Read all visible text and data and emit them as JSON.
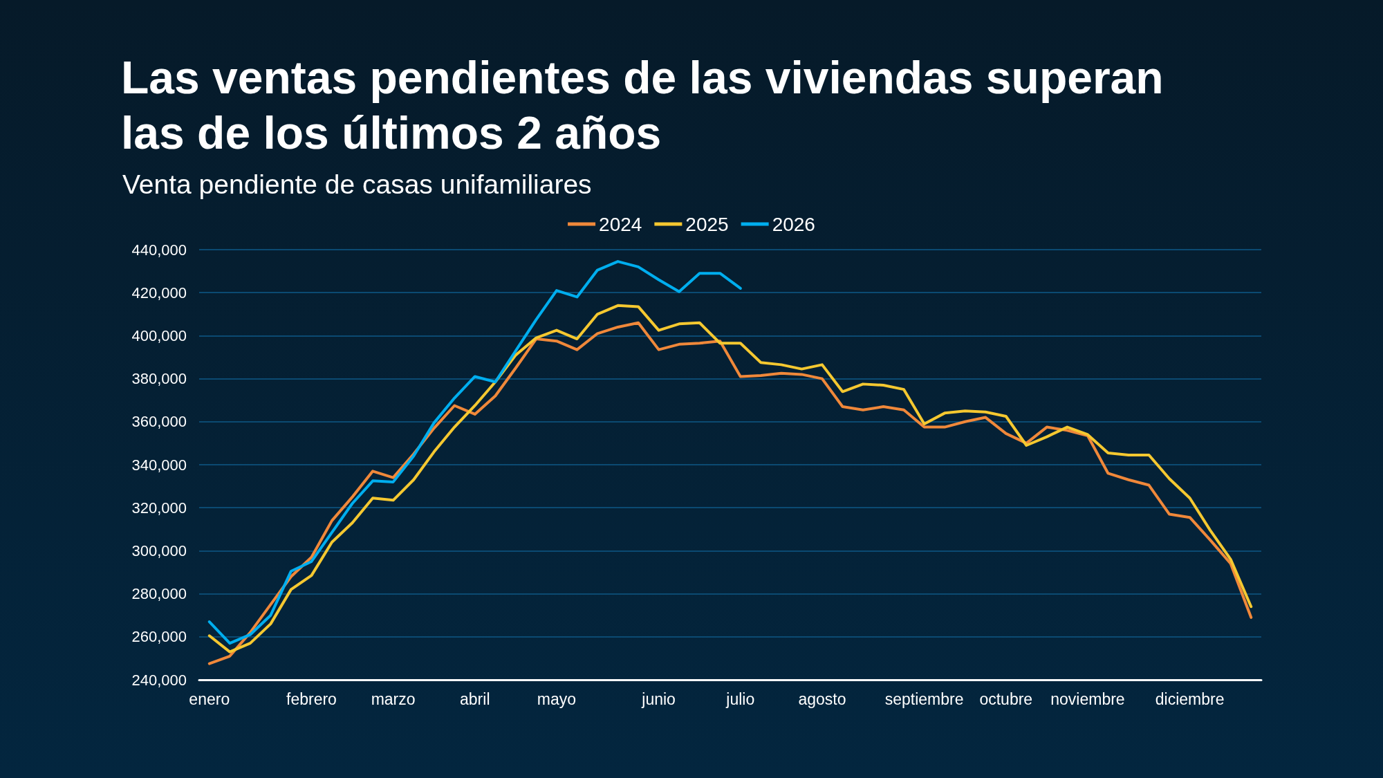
{
  "chart_data": {
    "type": "line",
    "title": "Las ventas pendientes de las viviendas superan las de los últimos 2 años",
    "subtitle": "Venta pendiente de casas unifamiliares",
    "categories": [
      "enero",
      null,
      null,
      null,
      null,
      "febrero",
      null,
      null,
      null,
      "marzo",
      null,
      null,
      null,
      "abril",
      null,
      null,
      null,
      "mayo",
      null,
      null,
      null,
      null,
      "junio",
      null,
      null,
      null,
      "julio",
      null,
      null,
      null,
      "agosto",
      null,
      null,
      null,
      null,
      "septiembre",
      null,
      null,
      null,
      "octubre",
      null,
      null,
      null,
      "noviembre",
      null,
      null,
      null,
      null,
      "diciembre",
      null,
      null,
      null
    ],
    "series": [
      {
        "name": "2024",
        "color": "#f0883a",
        "values": [
          247500,
          251000,
          262000,
          275000,
          288000,
          297000,
          314000,
          325000,
          337000,
          334000,
          345000,
          357000,
          367500,
          363500,
          372000,
          385000,
          398500,
          397500,
          393500,
          401000,
          404000,
          406000,
          393500,
          396000,
          396500,
          397500,
          381000,
          381500,
          382500,
          382000,
          380000,
          367000,
          365500,
          367000,
          365500,
          357500,
          357500,
          360000,
          362000,
          354500,
          350000,
          357500,
          356000,
          353500,
          336000,
          333000,
          330500,
          317000,
          315500,
          305000,
          294000,
          269000
        ]
      },
      {
        "name": "2025",
        "color": "#f5c830",
        "values": [
          260500,
          253000,
          257000,
          266000,
          282000,
          288500,
          304000,
          313000,
          324500,
          323500,
          333000,
          346000,
          357500,
          367500,
          378500,
          391000,
          399000,
          402500,
          398500,
          410000,
          414000,
          413500,
          402500,
          405500,
          406000,
          396500,
          396500,
          387500,
          386500,
          384500,
          386500,
          374000,
          377500,
          377000,
          375000,
          359000,
          364000,
          365000,
          364500,
          362500,
          349000,
          353000,
          357500,
          354000,
          345500,
          344500,
          344500,
          333500,
          324500,
          309500,
          296000,
          274000
        ]
      },
      {
        "name": "2026",
        "color": "#00aeef",
        "values": [
          267000,
          257000,
          261000,
          270000,
          290500,
          295000,
          308500,
          322000,
          332500,
          332000,
          344000,
          359500,
          371000,
          381000,
          378500,
          393000,
          407500,
          421000,
          418000,
          430500,
          434500,
          432000,
          426000,
          420500,
          429000,
          429000,
          422000,
          null,
          null,
          null,
          null,
          null,
          null,
          null,
          null,
          null,
          null,
          null,
          null,
          null,
          null,
          null,
          null,
          null,
          null,
          null,
          null,
          null,
          null,
          null,
          null,
          null
        ]
      }
    ],
    "ylim": [
      240000,
      440000
    ],
    "yticks": [
      {
        "value": 240000,
        "label": "240,000"
      },
      {
        "value": 260000,
        "label": "260,000"
      },
      {
        "value": 280000,
        "label": "280,000"
      },
      {
        "value": 300000,
        "label": "300,000"
      },
      {
        "value": 320000,
        "label": "320,000"
      },
      {
        "value": 340000,
        "label": "340,000"
      },
      {
        "value": 360000,
        "label": "360,000"
      },
      {
        "value": 380000,
        "label": "380,000"
      },
      {
        "value": 400000,
        "label": "400,000"
      },
      {
        "value": 420000,
        "label": "420,000"
      },
      {
        "value": 440000,
        "label": "440,000"
      }
    ],
    "grid": "y",
    "legend": "top",
    "marker": "none",
    "line_style": "solid"
  }
}
